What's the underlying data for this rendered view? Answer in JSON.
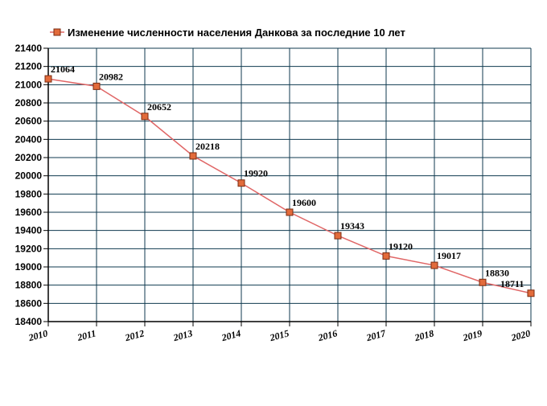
{
  "colors": {
    "grid": "#0f3a4f",
    "axis": "#000000",
    "line": "#e06666",
    "marker_fill": "#e26b3b",
    "marker_stroke": "#7a2b10",
    "background": "#ffffff"
  },
  "chart_data": {
    "type": "line",
    "title": "",
    "xlabel": "",
    "ylabel": "",
    "categories": [
      "2010",
      "2011",
      "2012",
      "2013",
      "2014",
      "2015",
      "2016",
      "2017",
      "2018",
      "2019",
      "2020"
    ],
    "series": [
      {
        "name": "Изменение численности населения Данкова за последние 10 лет",
        "values": [
          21064,
          20982,
          20652,
          20218,
          19920,
          19600,
          19343,
          19120,
          19017,
          18830,
          18711
        ],
        "labels": [
          "21064",
          "20982",
          "20652",
          "20218",
          "19920",
          "19600",
          "19343",
          "19120",
          "19017",
          "18830",
          "18711"
        ]
      }
    ],
    "ylim": [
      18400,
      21400
    ],
    "yticks": [
      "18400",
      "18600",
      "18800",
      "19000",
      "19200",
      "19400",
      "19600",
      "19800",
      "20000",
      "20200",
      "20400",
      "20600",
      "20800",
      "21000",
      "21200",
      "21400"
    ],
    "grid": true,
    "legend_position": "top-left"
  }
}
